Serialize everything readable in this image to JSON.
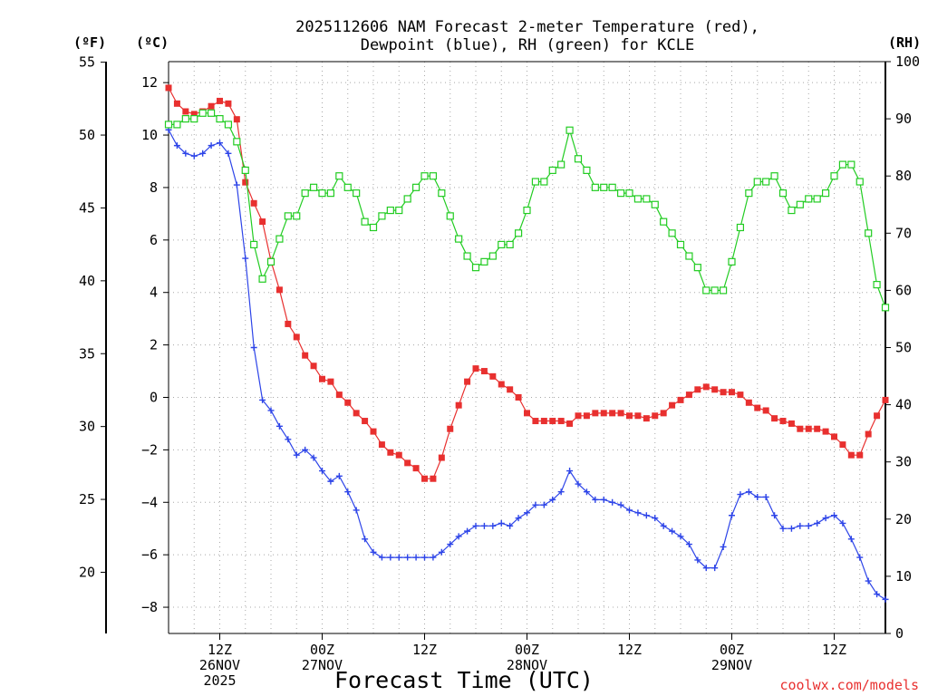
{
  "chart_data": {
    "type": "line",
    "title": {
      "line1": "2025112606 NAM Forecast 2-meter Temperature (red),",
      "line2": "Dewpoint (blue), RH (green) for KCLE"
    },
    "xlabel": "Forecast Time (UTC)",
    "credit": "coolwx.com/models",
    "colors": {
      "temperature": "#e8302f",
      "dewpoint": "#2d44e8",
      "rh": "#22cc22",
      "grid": "#a8a8a8"
    },
    "axes": {
      "x": {
        "range_hours": [
          6,
          90
        ]
      },
      "left_c": {
        "label": "(ºC)",
        "range": [
          -9,
          12.8
        ],
        "ticks": [
          12,
          10,
          8,
          6,
          4,
          2,
          0,
          -2,
          -4,
          -6,
          -8
        ]
      },
      "left_f": {
        "label": "(ºF)",
        "ticks": [
          55,
          50,
          45,
          40,
          35,
          30,
          25,
          20
        ]
      },
      "right_rh": {
        "label": "(RH)",
        "range": [
          0,
          100
        ],
        "ticks": [
          100,
          90,
          80,
          70,
          60,
          50,
          40,
          30,
          20,
          10,
          0
        ]
      }
    },
    "x_ticks": [
      {
        "hour": 12,
        "lines": [
          "12Z",
          "26NOV",
          "2025"
        ]
      },
      {
        "hour": 24,
        "lines": [
          "00Z",
          "27NOV"
        ]
      },
      {
        "hour": 36,
        "lines": [
          "12Z"
        ]
      },
      {
        "hour": 48,
        "lines": [
          "00Z",
          "28NOV"
        ]
      },
      {
        "hour": 60,
        "lines": [
          "12Z"
        ]
      },
      {
        "hour": 72,
        "lines": [
          "00Z",
          "29NOV"
        ]
      },
      {
        "hour": 84,
        "lines": [
          "12Z"
        ]
      }
    ],
    "series": [
      {
        "name": "Temperature",
        "unit": "C",
        "marker": "square-filled",
        "color": "#e8302f",
        "points": [
          [
            6,
            11.8
          ],
          [
            7,
            11.2
          ],
          [
            8,
            10.9
          ],
          [
            9,
            10.8
          ],
          [
            10,
            10.9
          ],
          [
            11,
            11.1
          ],
          [
            12,
            11.3
          ],
          [
            13,
            11.2
          ],
          [
            14,
            10.6
          ],
          [
            15,
            8.2
          ],
          [
            16,
            7.4
          ],
          [
            17,
            6.7
          ],
          [
            18,
            5.2
          ],
          [
            19,
            4.1
          ],
          [
            20,
            2.8
          ],
          [
            21,
            2.3
          ],
          [
            22,
            1.6
          ],
          [
            23,
            1.2
          ],
          [
            24,
            0.7
          ],
          [
            25,
            0.6
          ],
          [
            26,
            0.1
          ],
          [
            27,
            -0.2
          ],
          [
            28,
            -0.6
          ],
          [
            29,
            -0.9
          ],
          [
            30,
            -1.3
          ],
          [
            31,
            -1.8
          ],
          [
            32,
            -2.1
          ],
          [
            33,
            -2.2
          ],
          [
            34,
            -2.5
          ],
          [
            35,
            -2.7
          ],
          [
            36,
            -3.1
          ],
          [
            37,
            -3.1
          ],
          [
            38,
            -2.3
          ],
          [
            39,
            -1.2
          ],
          [
            40,
            -0.3
          ],
          [
            41,
            0.6
          ],
          [
            42,
            1.1
          ],
          [
            43,
            1.0
          ],
          [
            44,
            0.8
          ],
          [
            45,
            0.5
          ],
          [
            46,
            0.3
          ],
          [
            47,
            0.0
          ],
          [
            48,
            -0.6
          ],
          [
            49,
            -0.9
          ],
          [
            50,
            -0.9
          ],
          [
            51,
            -0.9
          ],
          [
            52,
            -0.9
          ],
          [
            53,
            -1.0
          ],
          [
            54,
            -0.7
          ],
          [
            55,
            -0.7
          ],
          [
            56,
            -0.6
          ],
          [
            57,
            -0.6
          ],
          [
            58,
            -0.6
          ],
          [
            59,
            -0.6
          ],
          [
            60,
            -0.7
          ],
          [
            61,
            -0.7
          ],
          [
            62,
            -0.8
          ],
          [
            63,
            -0.7
          ],
          [
            64,
            -0.6
          ],
          [
            65,
            -0.3
          ],
          [
            66,
            -0.1
          ],
          [
            67,
            0.1
          ],
          [
            68,
            0.3
          ],
          [
            69,
            0.4
          ],
          [
            70,
            0.3
          ],
          [
            71,
            0.2
          ],
          [
            72,
            0.2
          ],
          [
            73,
            0.1
          ],
          [
            74,
            -0.2
          ],
          [
            75,
            -0.4
          ],
          [
            76,
            -0.5
          ],
          [
            77,
            -0.8
          ],
          [
            78,
            -0.9
          ],
          [
            79,
            -1.0
          ],
          [
            80,
            -1.2
          ],
          [
            81,
            -1.2
          ],
          [
            82,
            -1.2
          ],
          [
            83,
            -1.3
          ],
          [
            84,
            -1.5
          ],
          [
            85,
            -1.8
          ],
          [
            86,
            -2.2
          ],
          [
            87,
            -2.2
          ],
          [
            88,
            -1.4
          ],
          [
            89,
            -0.7
          ],
          [
            90,
            -0.1
          ]
        ]
      },
      {
        "name": "Dewpoint",
        "unit": "C",
        "marker": "plus",
        "color": "#2d44e8",
        "points": [
          [
            6,
            10.2
          ],
          [
            7,
            9.6
          ],
          [
            8,
            9.3
          ],
          [
            9,
            9.2
          ],
          [
            10,
            9.3
          ],
          [
            11,
            9.6
          ],
          [
            12,
            9.7
          ],
          [
            13,
            9.3
          ],
          [
            14,
            8.1
          ],
          [
            15,
            5.3
          ],
          [
            16,
            1.9
          ],
          [
            17,
            -0.1
          ],
          [
            18,
            -0.5
          ],
          [
            19,
            -1.1
          ],
          [
            20,
            -1.6
          ],
          [
            21,
            -2.2
          ],
          [
            22,
            -2.0
          ],
          [
            23,
            -2.3
          ],
          [
            24,
            -2.8
          ],
          [
            25,
            -3.2
          ],
          [
            26,
            -3.0
          ],
          [
            27,
            -3.6
          ],
          [
            28,
            -4.3
          ],
          [
            29,
            -5.4
          ],
          [
            30,
            -5.9
          ],
          [
            31,
            -6.1
          ],
          [
            32,
            -6.1
          ],
          [
            33,
            -6.1
          ],
          [
            34,
            -6.1
          ],
          [
            35,
            -6.1
          ],
          [
            36,
            -6.1
          ],
          [
            37,
            -6.1
          ],
          [
            38,
            -5.9
          ],
          [
            39,
            -5.6
          ],
          [
            40,
            -5.3
          ],
          [
            41,
            -5.1
          ],
          [
            42,
            -4.9
          ],
          [
            43,
            -4.9
          ],
          [
            44,
            -4.9
          ],
          [
            45,
            -4.8
          ],
          [
            46,
            -4.9
          ],
          [
            47,
            -4.6
          ],
          [
            48,
            -4.4
          ],
          [
            49,
            -4.1
          ],
          [
            50,
            -4.1
          ],
          [
            51,
            -3.9
          ],
          [
            52,
            -3.6
          ],
          [
            53,
            -2.8
          ],
          [
            54,
            -3.3
          ],
          [
            55,
            -3.6
          ],
          [
            56,
            -3.9
          ],
          [
            57,
            -3.9
          ],
          [
            58,
            -4.0
          ],
          [
            59,
            -4.1
          ],
          [
            60,
            -4.3
          ],
          [
            61,
            -4.4
          ],
          [
            62,
            -4.5
          ],
          [
            63,
            -4.6
          ],
          [
            64,
            -4.9
          ],
          [
            65,
            -5.1
          ],
          [
            66,
            -5.3
          ],
          [
            67,
            -5.6
          ],
          [
            68,
            -6.2
          ],
          [
            69,
            -6.5
          ],
          [
            70,
            -6.5
          ],
          [
            71,
            -5.7
          ],
          [
            72,
            -4.5
          ],
          [
            73,
            -3.7
          ],
          [
            74,
            -3.6
          ],
          [
            75,
            -3.8
          ],
          [
            76,
            -3.8
          ],
          [
            77,
            -4.5
          ],
          [
            78,
            -5.0
          ],
          [
            79,
            -5.0
          ],
          [
            80,
            -4.9
          ],
          [
            81,
            -4.9
          ],
          [
            82,
            -4.8
          ],
          [
            83,
            -4.6
          ],
          [
            84,
            -4.5
          ],
          [
            85,
            -4.8
          ],
          [
            86,
            -5.4
          ],
          [
            87,
            -6.1
          ],
          [
            88,
            -7.0
          ],
          [
            89,
            -7.5
          ],
          [
            90,
            -7.7
          ]
        ]
      },
      {
        "name": "RH",
        "unit": "%",
        "marker": "square-open",
        "color": "#22cc22",
        "points": [
          [
            6,
            89
          ],
          [
            7,
            89
          ],
          [
            8,
            90
          ],
          [
            9,
            90
          ],
          [
            10,
            91
          ],
          [
            11,
            91
          ],
          [
            12,
            90
          ],
          [
            13,
            89
          ],
          [
            14,
            86
          ],
          [
            15,
            81
          ],
          [
            16,
            68
          ],
          [
            17,
            62
          ],
          [
            18,
            65
          ],
          [
            19,
            69
          ],
          [
            20,
            73
          ],
          [
            21,
            73
          ],
          [
            22,
            77
          ],
          [
            23,
            78
          ],
          [
            24,
            77
          ],
          [
            25,
            77
          ],
          [
            26,
            80
          ],
          [
            27,
            78
          ],
          [
            28,
            77
          ],
          [
            29,
            72
          ],
          [
            30,
            71
          ],
          [
            31,
            73
          ],
          [
            32,
            74
          ],
          [
            33,
            74
          ],
          [
            34,
            76
          ],
          [
            35,
            78
          ],
          [
            36,
            80
          ],
          [
            37,
            80
          ],
          [
            38,
            77
          ],
          [
            39,
            73
          ],
          [
            40,
            69
          ],
          [
            41,
            66
          ],
          [
            42,
            64
          ],
          [
            43,
            65
          ],
          [
            44,
            66
          ],
          [
            45,
            68
          ],
          [
            46,
            68
          ],
          [
            47,
            70
          ],
          [
            48,
            74
          ],
          [
            49,
            79
          ],
          [
            50,
            79
          ],
          [
            51,
            81
          ],
          [
            52,
            82
          ],
          [
            53,
            88
          ],
          [
            54,
            83
          ],
          [
            55,
            81
          ],
          [
            56,
            78
          ],
          [
            57,
            78
          ],
          [
            58,
            78
          ],
          [
            59,
            77
          ],
          [
            60,
            77
          ],
          [
            61,
            76
          ],
          [
            62,
            76
          ],
          [
            63,
            75
          ],
          [
            64,
            72
          ],
          [
            65,
            70
          ],
          [
            66,
            68
          ],
          [
            67,
            66
          ],
          [
            68,
            64
          ],
          [
            69,
            60
          ],
          [
            70,
            60
          ],
          [
            71,
            60
          ],
          [
            72,
            65
          ],
          [
            73,
            71
          ],
          [
            74,
            77
          ],
          [
            75,
            79
          ],
          [
            76,
            79
          ],
          [
            77,
            80
          ],
          [
            78,
            77
          ],
          [
            79,
            74
          ],
          [
            80,
            75
          ],
          [
            81,
            76
          ],
          [
            82,
            76
          ],
          [
            83,
            77
          ],
          [
            84,
            80
          ],
          [
            85,
            82
          ],
          [
            86,
            82
          ],
          [
            87,
            79
          ],
          [
            88,
            70
          ],
          [
            89,
            61
          ],
          [
            90,
            57
          ]
        ]
      }
    ]
  }
}
